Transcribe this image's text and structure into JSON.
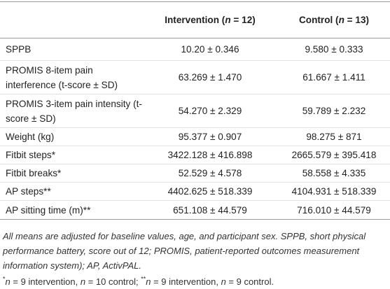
{
  "table": {
    "header": [
      [],
      [
        {
          "text": "Intervention ("
        },
        {
          "text": "n",
          "italic": true
        },
        {
          "text": " = 12)"
        }
      ],
      [
        {
          "text": "Control ("
        },
        {
          "text": "n",
          "italic": true
        },
        {
          "text": " = 13)"
        }
      ]
    ],
    "rows": [
      [
        "SPPB",
        "10.20 ± 0.346",
        "9.580 ± 0.333"
      ],
      [
        "PROMIS 8-item pain interference (t-score ± SD)",
        "63.269 ± 1.470",
        "61.667 ± 1.411"
      ],
      [
        "PROMIS 3-item pain intensity (t-score ± SD)",
        "54.270 ± 2.329",
        "59.789 ± 2.232"
      ],
      [
        "Weight (kg)",
        "95.377 ± 0.907",
        "98.275 ± 871"
      ],
      [
        "Fitbit steps*",
        "3422.128 ± 416.898",
        "2665.579 ± 395.418"
      ],
      [
        "Fitbit breaks*",
        "52.529 ± 4.578",
        "58.558 ± 4.335"
      ],
      [
        "AP steps**",
        "4402.625 ± 518.339",
        "4104.931 ± 518.339"
      ],
      [
        "AP sitting time (m)**",
        "651.108 ± 44.579",
        "716.010 ± 44.579"
      ]
    ]
  },
  "footnotes": [
    [
      {
        "text": "All means are adjusted for baseline values, age, and participant sex. SPPB, short physical performance battery, score out of 12; PROMIS, patient-reported outcomes measurement information system); AP, ActivPAL.",
        "italic": true
      }
    ],
    [
      {
        "text": "*",
        "sup": true
      },
      {
        "text": "n",
        "italic": true
      },
      {
        "text": " = 9 intervention, "
      },
      {
        "text": "n",
        "italic": true
      },
      {
        "text": " = 10 control; "
      },
      {
        "text": "**",
        "sup": true
      },
      {
        "text": "n",
        "italic": true
      },
      {
        "text": " = 9 intervention, "
      },
      {
        "text": "n",
        "italic": true
      },
      {
        "text": " = 9 control."
      }
    ]
  ]
}
